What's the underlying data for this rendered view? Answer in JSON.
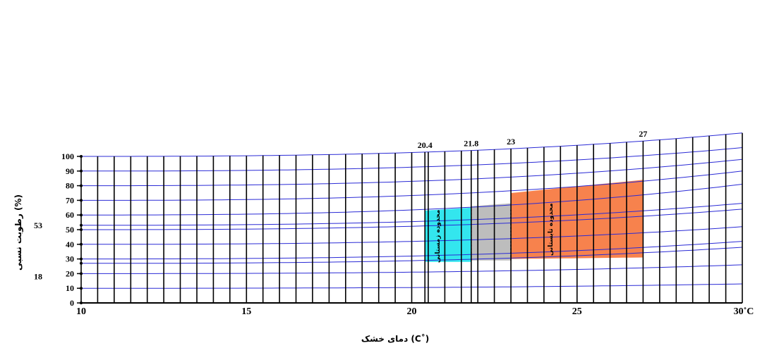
{
  "chart_data": {
    "type": "line",
    "xlabel": "دمای خشک (C˚)",
    "ylabel": "رطوبت نسبی (%)",
    "x_ticks": [
      "10",
      "15",
      "20",
      "25"
    ],
    "x_end_label": "30˚C",
    "y_ticks": [
      "0",
      "10",
      "20",
      "30",
      "40",
      "50",
      "60",
      "70",
      "80",
      "90",
      "100"
    ],
    "xlim": [
      10,
      30
    ],
    "ylim": [
      0,
      100
    ],
    "dry_bulb_lines": [
      10,
      10.5,
      11,
      11.5,
      12,
      12.5,
      13,
      13.5,
      14,
      14.5,
      15,
      15.5,
      16,
      16.5,
      17,
      17.5,
      18,
      18.5,
      19,
      19.5,
      20,
      20.4,
      20.5,
      21,
      21.5,
      21.8,
      22,
      22.5,
      23,
      23.5,
      24,
      24.5,
      25,
      25.5,
      26,
      26.5,
      27,
      27.5,
      28,
      28.5,
      29,
      29.5,
      30
    ],
    "rh_curves": [
      {
        "at_10": 0,
        "at_30": 0
      },
      {
        "at_10": 10,
        "at_30": 13
      },
      {
        "at_10": 20,
        "at_30": 26
      },
      {
        "at_10": 27,
        "at_30": 38
      },
      {
        "at_10": 30,
        "at_30": 42
      },
      {
        "at_10": 40,
        "at_30": 52
      },
      {
        "at_10": 50,
        "at_30": 64
      },
      {
        "at_10": 53,
        "at_30": 68
      },
      {
        "at_10": 60,
        "at_30": 81
      },
      {
        "at_10": 70,
        "at_30": 90
      },
      {
        "at_10": 80,
        "at_30": 98
      },
      {
        "at_10": 90,
        "at_30": 106
      },
      {
        "at_10": 100,
        "at_30": 116
      }
    ],
    "curve_exponent": 2.6,
    "annotations": {
      "x_marks": [
        {
          "x": 20.4,
          "label": "20.4"
        },
        {
          "x": 21.8,
          "label": "21.8"
        },
        {
          "x": 23,
          "label": "23"
        },
        {
          "x": 27,
          "label": "27"
        }
      ],
      "y_marks": [
        {
          "y": 53,
          "label": "53"
        },
        {
          "y": 18,
          "label": "18"
        }
      ]
    },
    "zones": [
      {
        "x0": 20.4,
        "x1": 21.8,
        "y0": 28,
        "y1": 63,
        "color": "#33e6ee",
        "label": "محدوده زمستانی"
      },
      {
        "x0": 21.8,
        "x1": 23,
        "y0": 29,
        "y1": 66,
        "color": "#bdbdbd",
        "label": ""
      },
      {
        "x0": 23,
        "x1": 27,
        "y0": 30,
        "y1": 75,
        "color": "#f7824d",
        "label": "محدوده تابستانی"
      }
    ],
    "colors": {
      "rh_curve": "#2b2bd6",
      "dry_bulb_line": "#000000",
      "background": "#ffffff"
    }
  }
}
